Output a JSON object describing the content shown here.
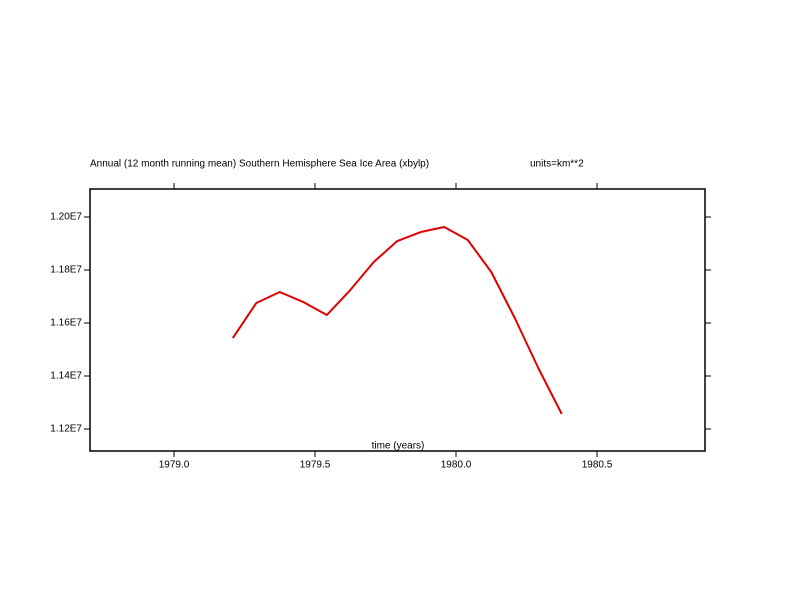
{
  "chart_data": {
    "type": "line",
    "title": "Annual (12 month running mean) Southern Hemisphere Sea Ice Area (xbylp)",
    "subtitle": "units=km**2",
    "x_label": "time (years)",
    "x": [
      1979.2083,
      1979.2917,
      1979.375,
      1979.4583,
      1979.5417,
      1979.625,
      1979.7083,
      1979.7917,
      1979.875,
      1979.9583,
      1980.0417,
      1980.125,
      1980.2083,
      1980.2917,
      1980.375
    ],
    "values": [
      11543400,
      11675500,
      11717000,
      11679200,
      11630200,
      11724500,
      11830200,
      11909400,
      11943400,
      11962300,
      11913200,
      11792500,
      11618900,
      11430200,
      11256600
    ],
    "color": "#e00000",
    "xlim": [
      1978.702,
      1980.883
    ],
    "ylim": [
      11117000,
      12105700
    ],
    "xticks": [
      {
        "value": 1979,
        "label": "1979.0"
      },
      1979.5,
      {
        "value": 1980,
        "label": "1980.0"
      },
      1980.5
    ],
    "yticks": [
      {
        "value": 11200000,
        "label": "1.12E7"
      },
      {
        "value": 11400000,
        "label": "1.14E7"
      },
      {
        "value": 11600000,
        "label": "1.16E7"
      },
      {
        "value": 11800000,
        "label": "1.18E7"
      },
      {
        "value": 12000000,
        "label": "1.20E7"
      }
    ],
    "grid": false
  }
}
